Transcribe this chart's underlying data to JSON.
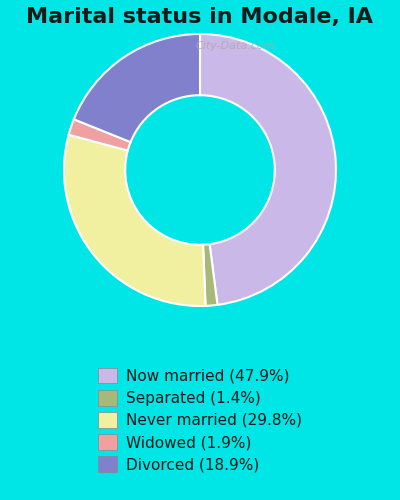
{
  "title": "Marital status in Modale, IA",
  "slices": [
    47.9,
    1.4,
    29.8,
    1.9,
    18.9
  ],
  "labels": [
    "Now married (47.9%)",
    "Separated (1.4%)",
    "Never married (29.8%)",
    "Widowed (1.9%)",
    "Divorced (18.9%)"
  ],
  "colors": [
    "#c9b8e8",
    "#a8b87a",
    "#f0f0a0",
    "#f0a0a0",
    "#8080cc"
  ],
  "background_color": "#00e5e5",
  "chart_bg_color": "#d8f0d8",
  "title_fontsize": 16,
  "legend_fontsize": 11,
  "watermark": "City-Data.com"
}
